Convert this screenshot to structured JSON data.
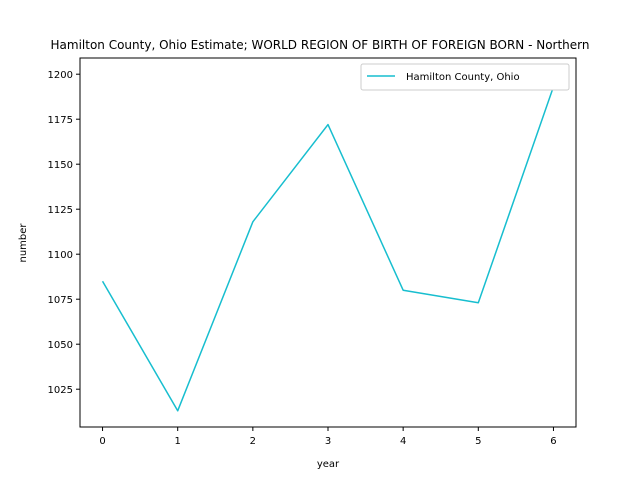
{
  "chart_data": {
    "type": "line",
    "title": "Hamilton County, Ohio Estimate; WORLD REGION OF BIRTH OF FOREIGN BORN - Northern",
    "xlabel": "year",
    "ylabel": "number",
    "x": [
      0,
      1,
      2,
      3,
      4,
      5,
      6
    ],
    "xticks": [
      0,
      1,
      2,
      3,
      4,
      5,
      6
    ],
    "yticks": [
      1025,
      1050,
      1075,
      1100,
      1125,
      1150,
      1175,
      1200
    ],
    "xlim": [
      -0.3,
      6.3
    ],
    "ylim": [
      1004,
      1209
    ],
    "grid": false,
    "legend_position": "top-right",
    "series": [
      {
        "name": "Hamilton County, Ohio",
        "color": "#17becf",
        "values": [
          1085,
          1013,
          1118,
          1172,
          1080,
          1073,
          1193
        ]
      }
    ]
  }
}
